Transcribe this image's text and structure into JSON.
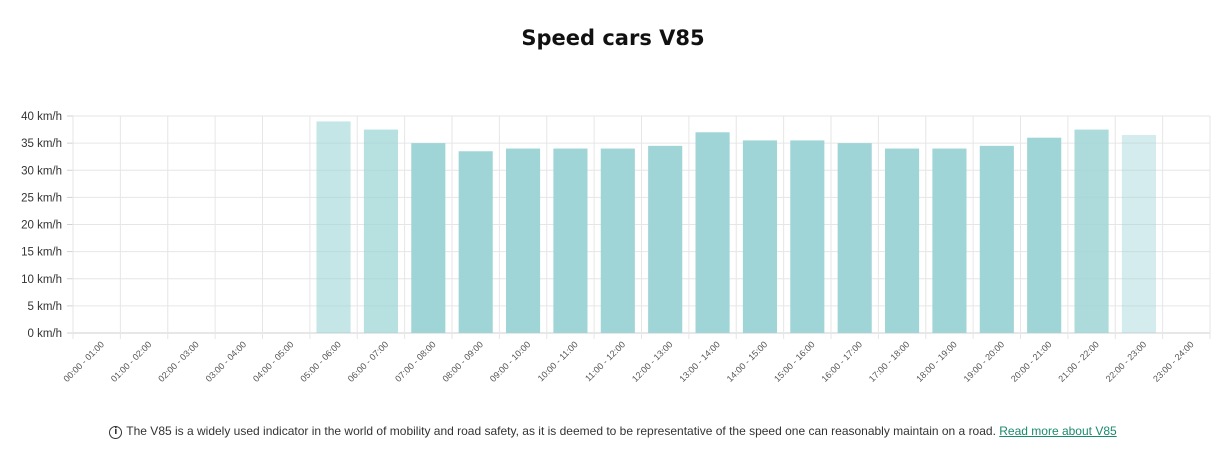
{
  "page": {
    "footer_text": "The V85 is a widely used indicator in the world of mobility and road safety, as it is deemed to be representative of the speed one can reasonably maintain on a road.",
    "footer_link": "Read more about V85",
    "info_icon": "info-circle-icon"
  },
  "chart_data": {
    "type": "bar",
    "title": "Speed cars V85",
    "xlabel": "",
    "ylabel": "",
    "unit": "km/h",
    "ylim": [
      0,
      40
    ],
    "yticks": [
      "0 km/h",
      "5 km/h",
      "10 km/h",
      "15 km/h",
      "20 km/h",
      "25 km/h",
      "30 km/h",
      "35 km/h",
      "40 km/h"
    ],
    "grid": true,
    "legend": "none",
    "colors": {
      "bar": "#9fd5d6",
      "bar_light": "#c3e6e6",
      "bar_lighter": "#d5eded"
    },
    "categories": [
      "00:00 - 01:00",
      "01:00 - 02:00",
      "02:00 - 03:00",
      "03:00 - 04:00",
      "04:00 - 05:00",
      "05:00 - 06:00",
      "06:00 - 07:00",
      "07:00 - 08:00",
      "08:00 - 09:00",
      "09:00 - 10:00",
      "10:00 - 11:00",
      "11:00 - 12:00",
      "12:00 - 13:00",
      "13:00 - 14:00",
      "14:00 - 15:00",
      "15:00 - 16:00",
      "16:00 - 17:00",
      "17:00 - 18:00",
      "18:00 - 19:00",
      "19:00 - 20:00",
      "20:00 - 21:00",
      "21:00 - 22:00",
      "22:00 - 23:00",
      "23:00 - 24:00"
    ],
    "values": [
      null,
      null,
      null,
      null,
      null,
      39,
      37.5,
      35,
      33.5,
      34,
      34,
      34,
      34.5,
      37,
      35.5,
      35.5,
      35,
      34,
      34,
      34.5,
      36,
      37.5,
      36.5,
      null
    ],
    "bar_opacity": [
      1,
      1,
      1,
      1,
      1,
      0.6,
      0.75,
      1,
      1,
      1,
      1,
      1,
      1,
      1,
      1,
      1,
      1,
      1,
      1,
      1,
      1,
      0.85,
      0.45,
      1
    ]
  }
}
